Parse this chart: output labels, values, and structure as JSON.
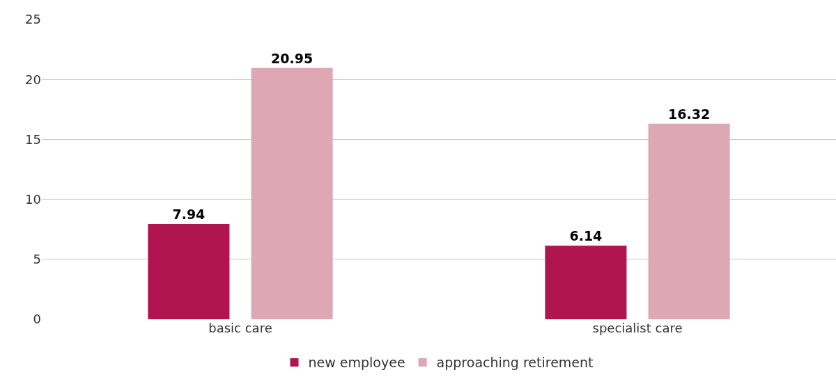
{
  "chart_data": {
    "type": "bar",
    "categories": [
      "basic care",
      "specialist care"
    ],
    "series": [
      {
        "name": "new employee",
        "color": "#b0154f",
        "values": [
          7.94,
          6.14
        ]
      },
      {
        "name": "approaching retirement",
        "color": "#dda8b3",
        "values": [
          20.95,
          16.32
        ]
      }
    ],
    "ylim": [
      0,
      25
    ],
    "yticks": [
      0,
      5,
      10,
      15,
      20,
      25
    ],
    "grid": "y",
    "legend": "bottom",
    "data_labels": true
  }
}
